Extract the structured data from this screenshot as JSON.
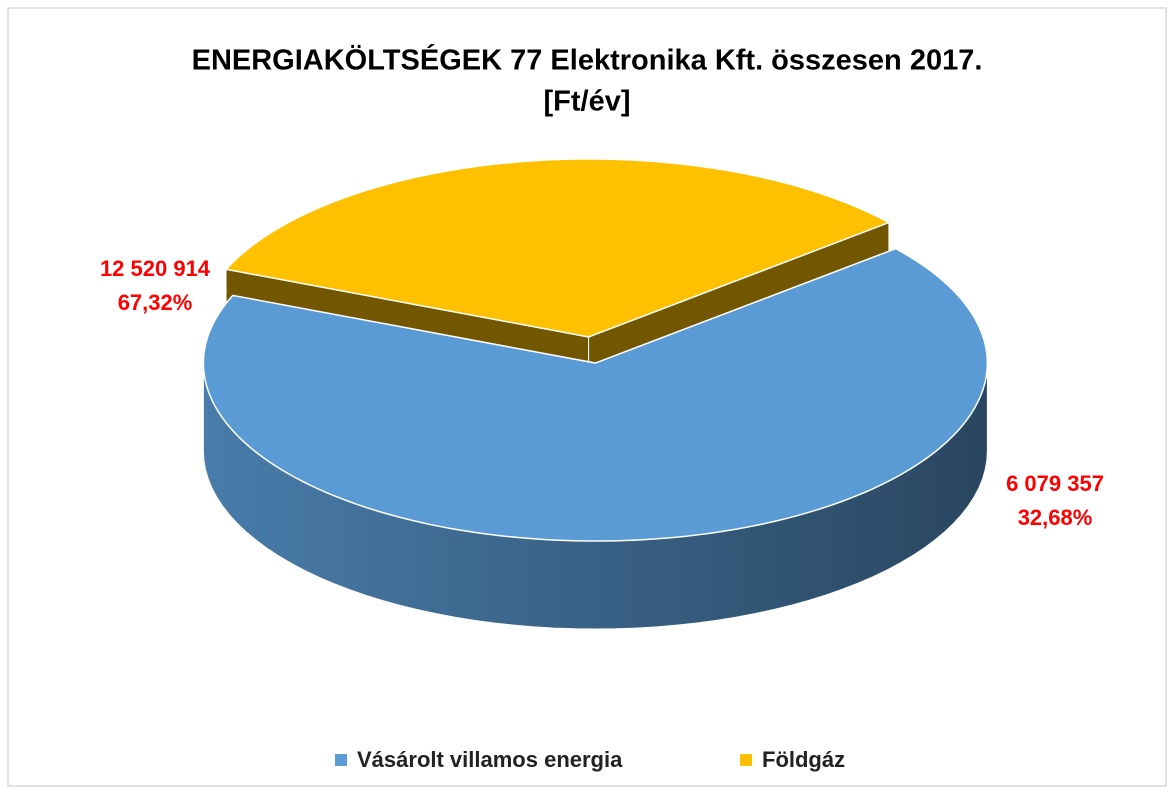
{
  "chart_data": {
    "type": "pie",
    "title": [
      "ENERGIAKÖLTSÉGEK 77 Elektronika Kft. összesen 2017.",
      "[Ft/év]"
    ],
    "categories": [
      "Vásárolt villamos energia",
      "Földgáz"
    ],
    "values": [
      12520914,
      6079357
    ],
    "value_labels": [
      "12 520 914",
      "6 079 357"
    ],
    "percents": [
      67.32,
      32.68
    ],
    "percent_labels": [
      "67,32%",
      "32,68%"
    ],
    "colors": [
      "#5b9bd5",
      "#ffc000"
    ],
    "legend": "bottom"
  }
}
